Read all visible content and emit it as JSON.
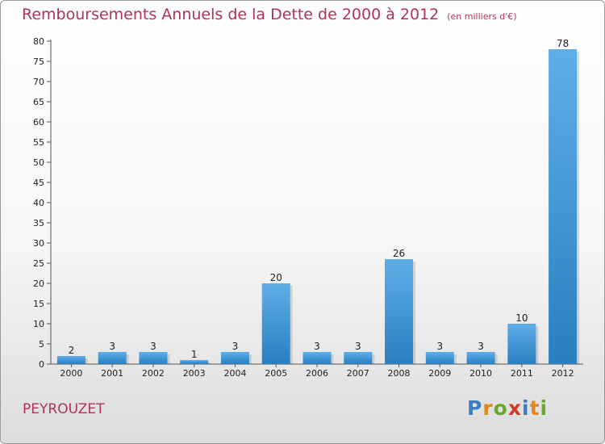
{
  "header": {
    "title": "Remboursements Annuels de la Dette de 2000 à 2012",
    "unit": "(en milliers d'€)"
  },
  "footer": {
    "commune": "PEYROUZET",
    "logo_letters": [
      "P",
      "r",
      "o",
      "x",
      "i",
      "t",
      "i"
    ]
  },
  "colors": {
    "title": "#b0305e",
    "bar_top": "#5eaee8",
    "bar_bottom": "#2a7fc0",
    "logo": [
      "#3a7fc4",
      "#e0871f",
      "#6aa82c",
      "#d23b2c",
      "#3a7fc4",
      "#e0871f",
      "#6aa82c"
    ]
  },
  "chart_data": {
    "type": "bar",
    "title": "Remboursements Annuels de la Dette de 2000 à 2012",
    "categories": [
      "2000",
      "2001",
      "2002",
      "2003",
      "2004",
      "2005",
      "2006",
      "2007",
      "2008",
      "2009",
      "2010",
      "2011",
      "2012"
    ],
    "values": [
      2,
      3,
      3,
      1,
      3,
      20,
      3,
      3,
      26,
      3,
      3,
      10,
      78
    ],
    "ylim": [
      0,
      80
    ],
    "yticks": [
      0,
      5,
      10,
      15,
      20,
      25,
      30,
      35,
      40,
      45,
      50,
      55,
      60,
      65,
      70,
      75,
      80
    ],
    "grid": false,
    "xlabel": "",
    "ylabel": ""
  }
}
